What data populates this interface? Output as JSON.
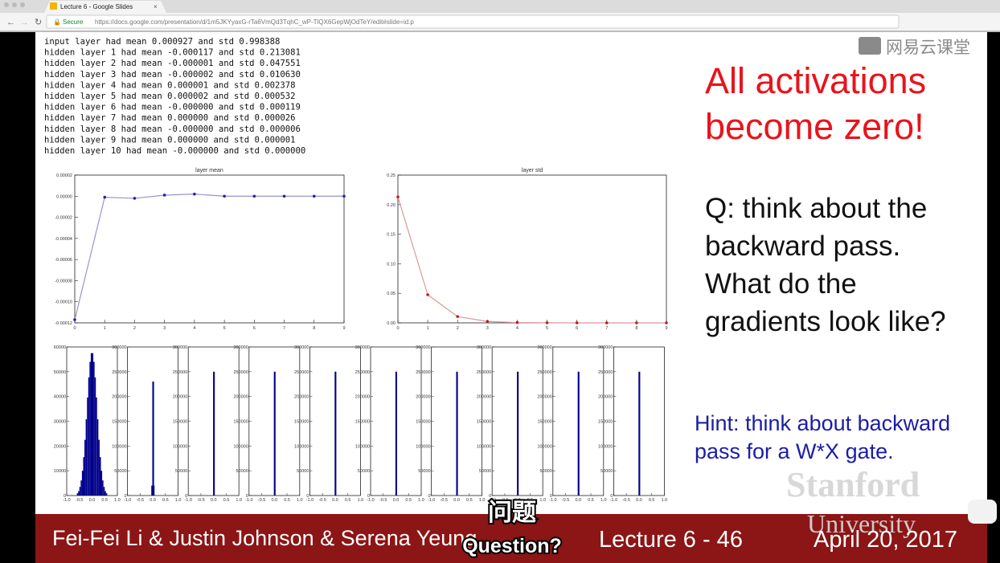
{
  "browser": {
    "tab_title": "Lecture 6 - Google Slides",
    "secure": "Secure",
    "url": "https://docs.google.com/presentation/d/1m5JKYyaxG-rTa6VmQd3TqhC_wP-TlQX6GepWjOdTeY/edit#slide=id.p"
  },
  "watermark": "网易云课堂",
  "slide": {
    "code_lines": [
      "input layer had mean 0.000927 and std 0.998388",
      "hidden layer 1 had mean -0.000117 and std 0.213081",
      "hidden layer 2 had mean -0.000001 and std 0.047551",
      "hidden layer 3 had mean -0.000002 and std 0.010630",
      "hidden layer 4 had mean 0.000001 and std 0.002378",
      "hidden layer 5 had mean 0.000002 and std 0.000532",
      "hidden layer 6 had mean -0.000000 and std 0.000119",
      "hidden layer 7 had mean 0.000000 and std 0.000026",
      "hidden layer 8 had mean -0.000000 and std 0.000006",
      "hidden layer 9 had mean 0.000000 and std 0.000001",
      "hidden layer 10 had mean -0.000000 and std 0.000000"
    ],
    "title_lines": [
      "All activations",
      "become zero!"
    ],
    "question_lines": [
      "Q: think about the",
      "backward pass.",
      "What do the",
      "gradients look like?"
    ],
    "hint_lines": [
      "Hint: think about backward",
      "pass for a W*X gate."
    ],
    "logo_lines": [
      "Stanford",
      "University"
    ],
    "footer": {
      "authors": "Fei-Fei Li & Justin Johnson & Serena Yeung",
      "lecture": "Lecture 6 - 46",
      "date": "April 20, 2017"
    }
  },
  "subtitle": {
    "chinese": "问题",
    "english": "Question?"
  },
  "mean_chart": {
    "type": "line",
    "title": "layer mean",
    "color": "#1f1fb4",
    "line_color": "#9a94c8",
    "x": [
      0,
      1,
      2,
      3,
      4,
      5,
      6,
      7,
      8,
      9
    ],
    "values": [
      -0.000117,
      -1e-06,
      -2e-06,
      1e-06,
      2e-06,
      0,
      0,
      0,
      0,
      0
    ],
    "xlim": [
      0,
      9
    ],
    "xticks": [
      0,
      1,
      2,
      3,
      4,
      5,
      6,
      7,
      8,
      9
    ],
    "ylim": [
      -0.00012,
      2e-05
    ],
    "yticks": [
      {
        "value": -0.00012,
        "label": "-0.00012"
      },
      {
        "value": -0.0001,
        "label": "-0.00010"
      },
      {
        "value": -8e-05,
        "label": "-0.00008"
      },
      {
        "value": -6e-05,
        "label": "-0.00006"
      },
      {
        "value": -4e-05,
        "label": "-0.00004"
      },
      {
        "value": -2e-05,
        "label": "-0.00002"
      },
      {
        "value": 0,
        "label": "0.00000"
      },
      {
        "value": 2e-05,
        "label": "0.00002"
      }
    ]
  },
  "std_chart": {
    "type": "line",
    "title": "layer std",
    "color": "#c41a1a",
    "line_color": "#d89a9a",
    "x": [
      0,
      1,
      2,
      3,
      4,
      5,
      6,
      7,
      8,
      9
    ],
    "values": [
      0.213081,
      0.047551,
      0.01063,
      0.002378,
      0.000532,
      0.000119,
      2.6e-05,
      6e-06,
      1e-06,
      0
    ],
    "xlim": [
      0,
      9
    ],
    "xticks": [
      0,
      1,
      2,
      3,
      4,
      5,
      6,
      7,
      8,
      9
    ],
    "ylim": [
      0,
      0.25
    ],
    "yticks": [
      {
        "value": 0,
        "label": "0.00"
      },
      {
        "value": 0.05,
        "label": "0.05"
      },
      {
        "value": 0.1,
        "label": "0.10"
      },
      {
        "value": 0.15,
        "label": "0.15"
      },
      {
        "value": 0.2,
        "label": "0.20"
      },
      {
        "value": 0.25,
        "label": "0.25"
      }
    ]
  },
  "histograms": {
    "type": "histogram",
    "color": "#00008b",
    "xlim": [
      -1,
      1
    ],
    "xticks": [
      {
        "value": -1,
        "label": "-1.0"
      },
      {
        "value": -0.5,
        "label": "-0.5"
      },
      {
        "value": 0,
        "label": "0.0"
      },
      {
        "value": 0.5,
        "label": "0.5"
      },
      {
        "value": 1,
        "label": "1.0"
      }
    ],
    "panels": [
      {
        "ylim": [
          0,
          60000
        ],
        "yticks": [
          0,
          10000,
          20000,
          30000,
          40000,
          50000,
          60000
        ],
        "bins": [
          -0.6,
          -0.55,
          -0.5,
          -0.45,
          -0.4,
          -0.35,
          -0.3,
          -0.25,
          -0.2,
          -0.15,
          -0.1,
          -0.05,
          0,
          0.05,
          0.1,
          0.15,
          0.2,
          0.25,
          0.3,
          0.35,
          0.4,
          0.45,
          0.5,
          0.55,
          0.6
        ],
        "counts": [
          900,
          1800,
          3500,
          6100,
          10000,
          15500,
          22500,
          30800,
          39600,
          47700,
          54000,
          57500,
          57500,
          54000,
          47700,
          39600,
          30800,
          22500,
          15500,
          10000,
          6100,
          3500,
          1800,
          900
        ]
      },
      {
        "ylim": [
          0,
          300000
        ],
        "yticks": [
          0,
          50000,
          100000,
          150000,
          200000,
          250000,
          300000
        ],
        "bins": [
          -0.06,
          -0.02,
          0,
          0.02,
          0.06
        ],
        "counts": [
          20000,
          230000,
          230000,
          20000
        ]
      },
      {
        "ylim": [
          0,
          300000
        ],
        "yticks": [
          0,
          50000,
          100000,
          150000,
          200000,
          250000,
          300000
        ],
        "bins": [
          -0.02,
          0,
          0.02
        ],
        "counts": [
          250000,
          250000
        ]
      },
      {
        "ylim": [
          0,
          300000
        ],
        "yticks": [
          0,
          50000,
          100000,
          150000,
          200000,
          250000,
          300000
        ],
        "bins": [
          -0.02,
          0,
          0.02
        ],
        "counts": [
          250000,
          250000
        ]
      },
      {
        "ylim": [
          0,
          300000
        ],
        "yticks": [
          0,
          50000,
          100000,
          150000,
          200000,
          250000,
          300000
        ],
        "bins": [
          -0.02,
          0,
          0.02
        ],
        "counts": [
          250000,
          250000
        ]
      },
      {
        "ylim": [
          0,
          300000
        ],
        "yticks": [
          0,
          50000,
          100000,
          150000,
          200000,
          250000,
          300000
        ],
        "bins": [
          -0.02,
          0,
          0.02
        ],
        "counts": [
          250000,
          250000
        ]
      },
      {
        "ylim": [
          0,
          300000
        ],
        "yticks": [
          0,
          50000,
          100000,
          150000,
          200000,
          250000,
          300000
        ],
        "bins": [
          -0.02,
          0,
          0.02
        ],
        "counts": [
          250000,
          250000
        ]
      },
      {
        "ylim": [
          0,
          300000
        ],
        "yticks": [
          0,
          50000,
          100000,
          150000,
          200000,
          250000,
          300000
        ],
        "bins": [
          -0.02,
          0,
          0.02
        ],
        "counts": [
          250000,
          250000
        ]
      },
      {
        "ylim": [
          0,
          300000
        ],
        "yticks": [
          0,
          50000,
          100000,
          150000,
          200000,
          250000,
          300000
        ],
        "bins": [
          -0.02,
          0,
          0.02
        ],
        "counts": [
          250000,
          250000
        ]
      },
      {
        "ylim": [
          0,
          300000
        ],
        "yticks": [
          0,
          50000,
          100000,
          150000,
          200000,
          250000,
          300000
        ],
        "bins": [
          -0.02,
          0,
          0.02
        ],
        "counts": [
          250000,
          250000
        ]
      }
    ]
  }
}
